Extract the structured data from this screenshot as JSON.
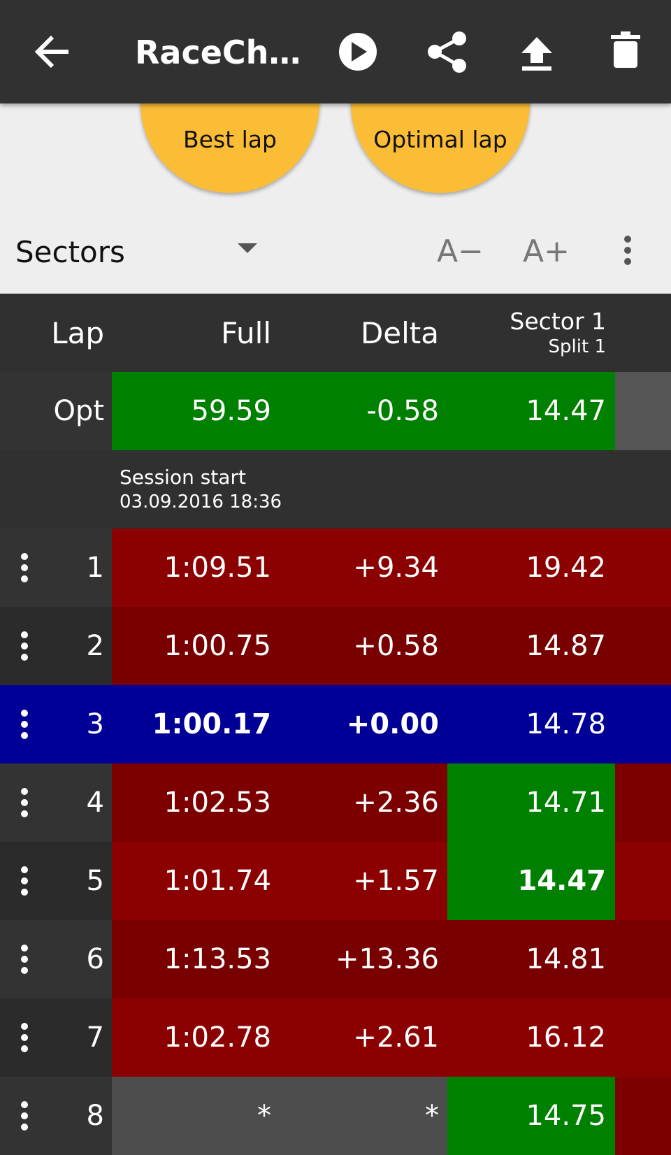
{
  "toolbar": {
    "title": "RaceCh…"
  },
  "buttons": [
    "Best lap",
    "Optimal lap"
  ],
  "controls": {
    "view": "Sectors",
    "font_smaller": "A−",
    "font_larger": "A+"
  },
  "table": {
    "header": {
      "lap": "Lap",
      "full": "Full",
      "delta": "Delta",
      "sector": "Sector 1",
      "split": "Split 1"
    },
    "optimal": [
      "Opt",
      "59.59",
      "-0.58",
      "14.47"
    ],
    "session": {
      "label": "Session start",
      "time": "03.09.2016 18:36"
    },
    "rows": [
      [
        "1",
        "1:09.51",
        "+9.34",
        "19.42"
      ],
      [
        "2",
        "1:00.75",
        "+0.58",
        "14.87"
      ],
      [
        "3",
        "1:00.17",
        "+0.00",
        "14.78"
      ],
      [
        "4",
        "1:02.53",
        "+2.36",
        "14.71"
      ],
      [
        "5",
        "1:01.74",
        "+1.57",
        "14.47"
      ],
      [
        "6",
        "1:13.53",
        "+13.36",
        "14.81"
      ],
      [
        "7",
        "1:02.78",
        "+2.61",
        "16.12"
      ],
      [
        "8",
        "*",
        "*",
        "14.75"
      ]
    ]
  }
}
